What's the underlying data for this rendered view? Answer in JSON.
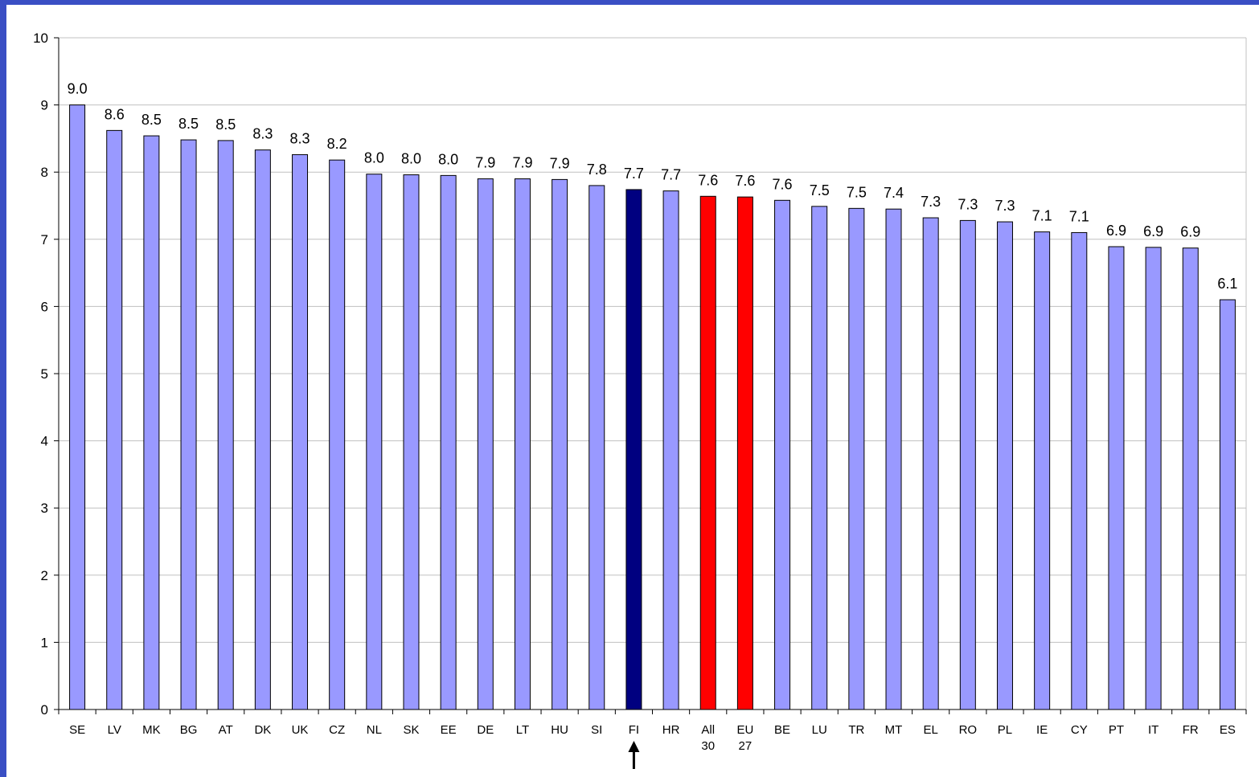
{
  "chart_data": {
    "type": "bar",
    "categories": [
      [
        "SE"
      ],
      [
        "LV"
      ],
      [
        "MK"
      ],
      [
        "BG"
      ],
      [
        "AT"
      ],
      [
        "DK"
      ],
      [
        "UK"
      ],
      [
        "CZ"
      ],
      [
        "NL"
      ],
      [
        "SK"
      ],
      [
        "EE"
      ],
      [
        "DE"
      ],
      [
        "LT"
      ],
      [
        "HU"
      ],
      [
        "SI"
      ],
      [
        "FI"
      ],
      [
        "HR"
      ],
      [
        "All",
        "30"
      ],
      [
        "EU",
        "27"
      ],
      [
        "BE"
      ],
      [
        "LU"
      ],
      [
        "TR"
      ],
      [
        "MT"
      ],
      [
        "EL"
      ],
      [
        "RO"
      ],
      [
        "PL"
      ],
      [
        "IE"
      ],
      [
        "CY"
      ],
      [
        "PT"
      ],
      [
        "IT"
      ],
      [
        "FR"
      ],
      [
        "ES"
      ]
    ],
    "values": [
      9.0,
      8.62,
      8.54,
      8.48,
      8.47,
      8.33,
      8.26,
      8.18,
      7.97,
      7.96,
      7.95,
      7.9,
      7.9,
      7.89,
      7.8,
      7.74,
      7.72,
      7.64,
      7.63,
      7.58,
      7.49,
      7.46,
      7.45,
      7.32,
      7.28,
      7.26,
      7.11,
      7.1,
      6.89,
      6.88,
      6.87,
      6.1
    ],
    "labels": [
      "9.0",
      "8.6",
      "8.5",
      "8.5",
      "8.5",
      "8.3",
      "8.3",
      "8.2",
      "8.0",
      "8.0",
      "8.0",
      "7.9",
      "7.9",
      "7.9",
      "7.8",
      "7.7",
      "7.7",
      "7.6",
      "7.6",
      "7.6",
      "7.5",
      "7.5",
      "7.4",
      "7.3",
      "7.3",
      "7.3",
      "7.1",
      "7.1",
      "6.9",
      "6.9",
      "6.9",
      "6.1"
    ],
    "highlight": {
      "FI": "#000080",
      "All 30": "#ff0000",
      "EU 27": "#ff0000"
    },
    "bar_color": "#9999ff",
    "ylim": [
      0,
      10
    ],
    "yticks": [
      0,
      1,
      2,
      3,
      4,
      5,
      6,
      7,
      8,
      9,
      10
    ],
    "grid": true,
    "grid_color": "#c0c0c0",
    "frame_color": "#3a4fc4",
    "marker": {
      "type": "arrow-up",
      "category": "FI"
    }
  }
}
